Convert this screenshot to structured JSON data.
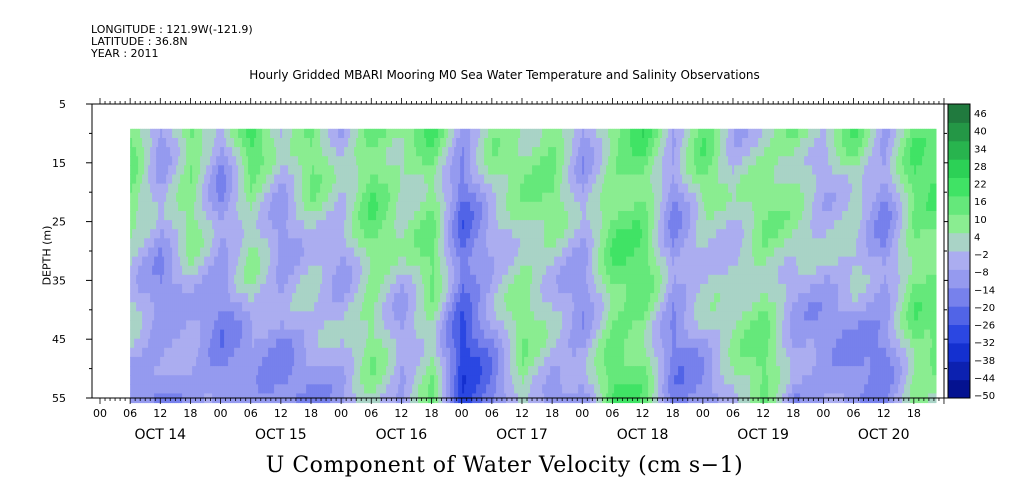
{
  "header": {
    "longitude": "LONGITUDE : 121.9W(-121.9)",
    "latitude": "LATITUDE : 36.8N",
    "year": "YEAR : 2011"
  },
  "chart_data": {
    "type": "heatmap",
    "title": "Hourly Gridded MBARI Mooring M0 Sea Water Temperature and Salinity Observations",
    "variable_title": "U Component of Water Velocity (cm s−1)",
    "ylabel": "DEPTH (m)",
    "ylim": [
      55,
      5
    ],
    "y_ticks": [
      "5",
      "15",
      "25",
      "35",
      "45",
      "55"
    ],
    "x_hour_ticks": [
      "00",
      "06",
      "12",
      "18",
      "00",
      "06",
      "12",
      "18",
      "00",
      "06",
      "12",
      "18",
      "00",
      "06",
      "12",
      "18",
      "00",
      "06",
      "12",
      "18",
      "00",
      "06",
      "12",
      "18",
      "00",
      "06",
      "12",
      "18"
    ],
    "x_day_labels": [
      "OCT 14",
      "OCT 15",
      "OCT 16",
      "OCT 17",
      "OCT 18",
      "OCT 19",
      "OCT 20"
    ],
    "data_depth_range": [
      10,
      55
    ],
    "colorbar": {
      "labels": [
        "46",
        "40",
        "34",
        "28",
        "22",
        "16",
        "10",
        "4",
        "−2",
        "−8",
        "−14",
        "−20",
        "−26",
        "−32",
        "−38",
        "−44",
        "−50"
      ],
      "range": [
        -50,
        46
      ]
    },
    "column_velocity_profile": [
      {
        "time": "OCT 14 06",
        "surface": 14,
        "bottom": -10
      },
      {
        "time": "OCT 14 12",
        "surface": -8,
        "bottom": -14
      },
      {
        "time": "OCT 14 18",
        "surface": 16,
        "bottom": -12
      },
      {
        "time": "OCT 15 00",
        "surface": -10,
        "bottom": -16
      },
      {
        "time": "OCT 15 06",
        "surface": 18,
        "bottom": -12
      },
      {
        "time": "OCT 15 12",
        "surface": -6,
        "bottom": -14
      },
      {
        "time": "OCT 15 18",
        "surface": 12,
        "bottom": -10
      },
      {
        "time": "OCT 16 00",
        "surface": -4,
        "bottom": -8
      },
      {
        "time": "OCT 16 06",
        "surface": 16,
        "bottom": 4
      },
      {
        "time": "OCT 16 12",
        "surface": 8,
        "bottom": -12
      },
      {
        "time": "OCT 16 18",
        "surface": 14,
        "bottom": 6
      },
      {
        "time": "OCT 17 00",
        "surface": -14,
        "bottom": -30
      },
      {
        "time": "OCT 17 06",
        "surface": 6,
        "bottom": -16
      },
      {
        "time": "OCT 17 12",
        "surface": 4,
        "bottom": 8
      },
      {
        "time": "OCT 17 18",
        "surface": 14,
        "bottom": -10
      },
      {
        "time": "OCT 18 00",
        "surface": -8,
        "bottom": -12
      },
      {
        "time": "OCT 18 06",
        "surface": 10,
        "bottom": 14
      },
      {
        "time": "OCT 18 12",
        "surface": 16,
        "bottom": 10
      },
      {
        "time": "OCT 18 18",
        "surface": -10,
        "bottom": -16
      },
      {
        "time": "OCT 19 00",
        "surface": 14,
        "bottom": -12
      },
      {
        "time": "OCT 19 06",
        "surface": -6,
        "bottom": 4
      },
      {
        "time": "OCT 19 12",
        "surface": 4,
        "bottom": 12
      },
      {
        "time": "OCT 19 18",
        "surface": 12,
        "bottom": -14
      },
      {
        "time": "OCT 20 00",
        "surface": -2,
        "bottom": -12
      },
      {
        "time": "OCT 20 06",
        "surface": 12,
        "bottom": -16
      },
      {
        "time": "OCT 20 12",
        "surface": -12,
        "bottom": -14
      },
      {
        "time": "OCT 20 18",
        "surface": 14,
        "bottom": 8
      }
    ],
    "colors": {
      "strong_positive": "#1e6b3a",
      "positive": "#2ee05a",
      "weak_positive": "#9cf09c",
      "weak_negative": "#b6b6f0",
      "negative": "#8a90ee",
      "strong_negative": "#1838e0",
      "extreme_negative": "#000a80"
    }
  }
}
